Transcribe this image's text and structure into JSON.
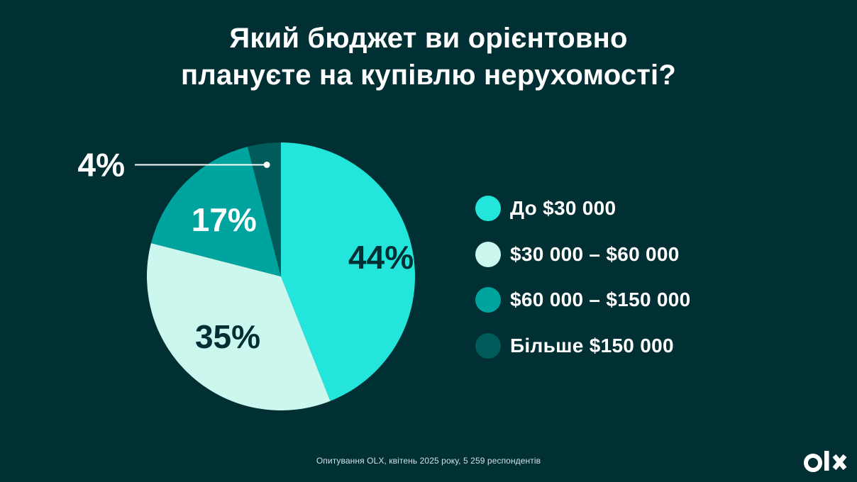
{
  "title": {
    "line1": "Який бюджет ви орієнтовно",
    "line2": "плануєте на купівлю нерухомості?"
  },
  "chart_data": {
    "type": "pie",
    "title": "Який бюджет ви орієнтовно плануєте на купівлю нерухомості?",
    "categories": [
      "До $30 000",
      "$30 000 – $60 000",
      "$60 000 – $150 000",
      "Більше $150 000"
    ],
    "values": [
      44,
      35,
      17,
      4
    ],
    "value_labels": [
      "44%",
      "35%",
      "17%",
      "4%"
    ],
    "colors": [
      "#23e5db",
      "#cbf7ee",
      "#00a49f",
      "#005b5a"
    ],
    "label_colors": [
      "#002f34",
      "#002f34",
      "#ffffff",
      "#ffffff"
    ],
    "start": "12 o'clock",
    "direction": "clockwise",
    "legend_position": "right"
  },
  "legend": {
    "items": [
      {
        "label": "До $30 000",
        "color": "#23e5db"
      },
      {
        "label": "$30 000 – $60 000",
        "color": "#cbf7ee"
      },
      {
        "label": "$60 000 – $150 000",
        "color": "#00a49f"
      },
      {
        "label": "Більше $150 000",
        "color": "#005b5a"
      }
    ]
  },
  "footnote": "Опитування OLX, квітень 2025 року, 5 259 респондентів",
  "logo": {
    "text": "OLX",
    "icon": "olx-logo-icon"
  },
  "colors": {
    "background": "#002f34",
    "text": "#ffffff"
  }
}
